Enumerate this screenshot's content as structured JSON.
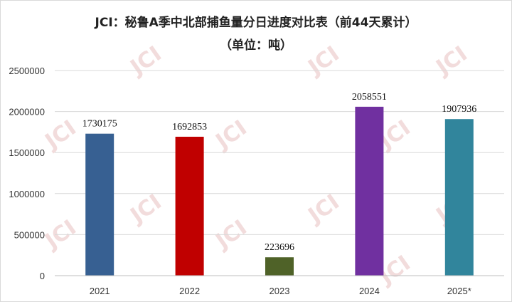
{
  "chart_data": {
    "type": "bar",
    "title": "JCI：秘鲁A季中北部捕鱼量分日进度对比表（前44天累计）",
    "subtitle": "（单位：吨）",
    "categories": [
      "2021",
      "2022",
      "2023",
      "2024",
      "2025*"
    ],
    "values": [
      1730175,
      1692853,
      223696,
      2058551,
      1907936
    ],
    "colors": [
      "#376092",
      "#c00000",
      "#4f6228",
      "#7030a0",
      "#31859c"
    ],
    "xlabel": "",
    "ylabel": "",
    "ylim": [
      0,
      2500000
    ],
    "yticks": [
      "0",
      "500000",
      "1000000",
      "1500000",
      "2000000",
      "2500000"
    ],
    "grid": true,
    "legend": "none"
  },
  "watermark": "JCI"
}
